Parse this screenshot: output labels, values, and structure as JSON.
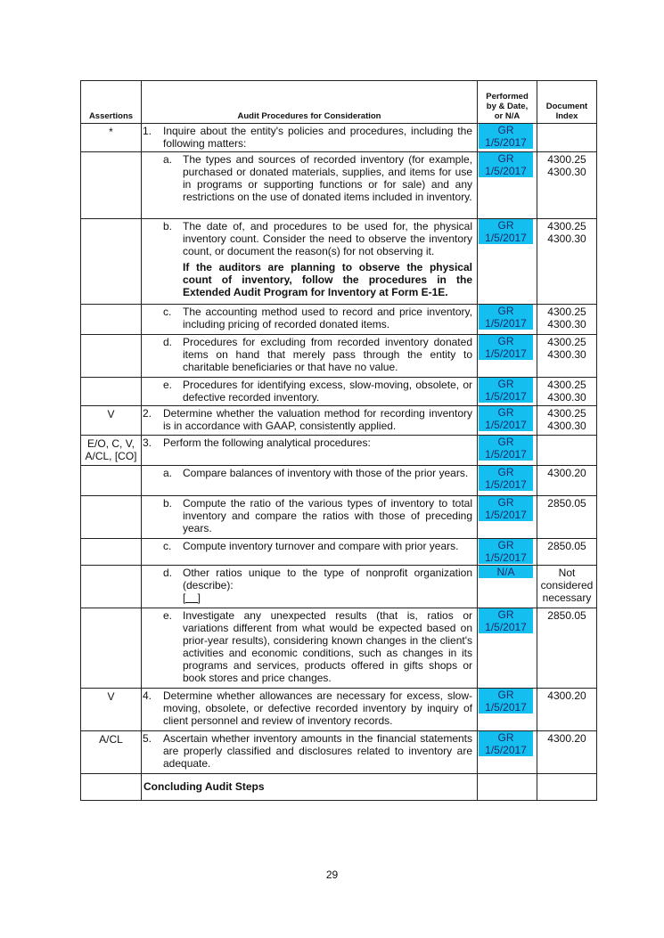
{
  "header": {
    "assertions": "Assertions",
    "procedures": "Audit Procedures for Consideration",
    "performed": "Performed by & Date, or N/A",
    "document_index": "Document Index"
  },
  "highlight_color": "#14bff0",
  "rows": [
    {
      "assertion": "*",
      "num": "1.",
      "level": 1,
      "text": "Inquire about the entity's policies and procedures, including the following matters:",
      "perf": [
        "GR",
        "1/5/2017"
      ],
      "doc": []
    },
    {
      "assertion": "",
      "num": "a.",
      "level": 2,
      "text": "The types and sources of recorded inventory (for example, purchased or donated materials, supplies, and items for use in programs or supporting functions or for sale) and any restrictions on the use of donated items included in inventory.",
      "perf": [
        "GR",
        "1/5/2017"
      ],
      "doc": [
        "4300.25",
        "4300.30"
      ]
    },
    {
      "assertion": "",
      "num": "b.",
      "level": 2,
      "text": "The date of, and procedures to be used for, the physical inventory count. Consider the need to observe the inventory count, or document the reason(s) for not observing it.",
      "bold": "If the auditors are planning to observe the physical count of inventory, follow the procedures in the Extended Audit Program for Inventory at Form E-1E.",
      "perf": [
        "GR",
        "1/5/2017"
      ],
      "doc": [
        "4300.25",
        "4300.30"
      ]
    },
    {
      "assertion": "",
      "num": "c.",
      "level": 2,
      "text": "The accounting method used to record and price inventory, including pricing of recorded donated items.",
      "perf": [
        "GR",
        "1/5/2017"
      ],
      "doc": [
        "4300.25",
        "4300.30"
      ]
    },
    {
      "assertion": "",
      "num": "d.",
      "level": 2,
      "text": "Procedures for excluding from recorded inventory donated items on hand that merely pass through the entity to charitable beneficiaries or that have no value.",
      "perf": [
        "GR",
        "1/5/2017"
      ],
      "doc": [
        "4300.25",
        "4300.30"
      ]
    },
    {
      "assertion": "",
      "num": "e.",
      "level": 2,
      "text": "Procedures for identifying excess, slow-moving, obsolete, or defective recorded inventory.",
      "perf": [
        "GR",
        "1/5/2017"
      ],
      "doc": [
        "4300.25",
        "4300.30"
      ]
    },
    {
      "assertion": "V",
      "num": "2.",
      "level": 1,
      "text": "Determine whether the valuation method for recording inventory is in accordance with GAAP, consistently applied.",
      "perf": [
        "GR",
        "1/5/2017"
      ],
      "doc": [
        "4300.25",
        "4300.30"
      ]
    },
    {
      "assertion": "E/O, C, V, A/CL, [CO]",
      "num": "3.",
      "level": 1,
      "text": "Perform the following analytical procedures:",
      "perf": [
        "GR",
        "1/5/2017"
      ],
      "doc": []
    },
    {
      "assertion": "",
      "num": "a.",
      "level": 2,
      "text": "Compare balances of inventory with those of the prior years.",
      "perf": [
        "GR",
        "1/5/2017"
      ],
      "doc": [
        "4300.20"
      ]
    },
    {
      "assertion": "",
      "num": "b.",
      "level": 2,
      "text": "Compute the ratio of the various types of inventory to total inventory and compare the ratios with those of preceding years.",
      "perf": [
        "GR",
        "1/5/2017"
      ],
      "doc": [
        "2850.05"
      ]
    },
    {
      "assertion": "",
      "num": "c.",
      "level": 2,
      "text": "Compute inventory turnover and compare with prior years.",
      "perf": [
        "GR",
        "1/5/2017"
      ],
      "doc": [
        "2850.05"
      ]
    },
    {
      "assertion": "",
      "num": "d.",
      "level": 2,
      "text": "Other ratios unique to the type of nonprofit organization (describe):",
      "blank": "[    ]",
      "perf": [
        "N/A"
      ],
      "doc": [
        "Not",
        "considered",
        "necessary"
      ]
    },
    {
      "assertion": "",
      "num": "e.",
      "level": 2,
      "text": "Investigate any unexpected results (that is, ratios or variations different from what would be expected based on prior-year results), considering known changes in the client's activities and economic conditions, such as changes in its programs and services, products offered in gifts shops or book stores and price changes.",
      "perf": [
        "GR",
        "1/5/2017"
      ],
      "doc": [
        "2850.05"
      ]
    },
    {
      "assertion": "V",
      "num": "4.",
      "level": 1,
      "text": "Determine whether allowances are necessary for excess, slow-moving, obsolete, or defective recorded inventory by inquiry of client personnel and review of inventory records.",
      "perf": [
        "GR",
        "1/5/2017"
      ],
      "doc": [
        "4300.20"
      ]
    },
    {
      "assertion": "A/CL",
      "num": "5.",
      "level": 1,
      "text": "Ascertain whether inventory amounts in the financial statements are properly classified and disclosures related to inventory are adequate.",
      "perf": [
        "GR",
        "1/5/2017"
      ],
      "doc": [
        "4300.20"
      ]
    }
  ],
  "concluding": "Concluding Audit Steps",
  "page_number": "29"
}
